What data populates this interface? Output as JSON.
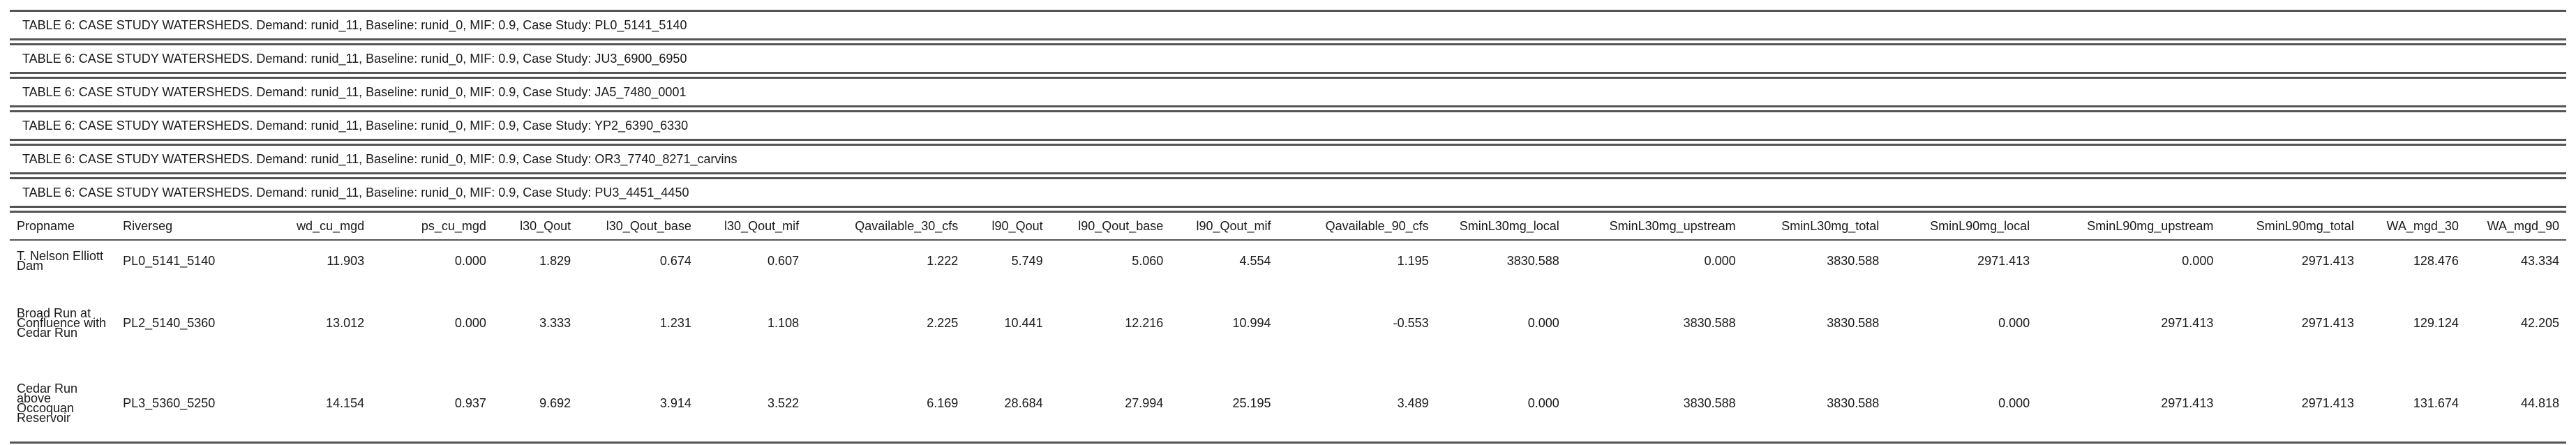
{
  "captions": [
    "TABLE 6: CASE STUDY WATERSHEDS. Demand: runid_11, Baseline: runid_0, MIF: 0.9, Case Study: PL0_5141_5140",
    "TABLE 6: CASE STUDY WATERSHEDS. Demand: runid_11, Baseline: runid_0, MIF: 0.9, Case Study: JU3_6900_6950",
    "TABLE 6: CASE STUDY WATERSHEDS. Demand: runid_11, Baseline: runid_0, MIF: 0.9, Case Study: JA5_7480_0001",
    "TABLE 6: CASE STUDY WATERSHEDS. Demand: runid_11, Baseline: runid_0, MIF: 0.9, Case Study: YP2_6390_6330",
    "TABLE 6: CASE STUDY WATERSHEDS. Demand: runid_11, Baseline: runid_0, MIF: 0.9, Case Study: OR3_7740_8271_carvins",
    "TABLE 6: CASE STUDY WATERSHEDS. Demand: runid_11, Baseline: runid_0, MIF: 0.9, Case Study: PU3_4451_4450"
  ],
  "columns": [
    "Propname",
    "Riverseg",
    "wd_cu_mgd",
    "ps_cu_mgd",
    "l30_Qout",
    "l30_Qout_base",
    "l30_Qout_mif",
    "Qavailable_30_cfs",
    "l90_Qout",
    "l90_Qout_base",
    "l90_Qout_mif",
    "Qavailable_90_cfs",
    "SminL30mg_local",
    "SminL30mg_upstream",
    "SminL30mg_total",
    "SminL90mg_local",
    "SminL90mg_upstream",
    "SminL90mg_total",
    "WA_mgd_30",
    "WA_mgd_90"
  ],
  "rows": [
    [
      "T. Nelson Elliott Dam",
      "PL0_5141_5140",
      "11.903",
      "0.000",
      "1.829",
      "0.674",
      "0.607",
      "1.222",
      "5.749",
      "5.060",
      "4.554",
      "1.195",
      "3830.588",
      "0.000",
      "3830.588",
      "2971.413",
      "0.000",
      "2971.413",
      "128.476",
      "43.334"
    ],
    [
      "Broad Run at Confluence with Cedar Run",
      "PL2_5140_5360",
      "13.012",
      "0.000",
      "3.333",
      "1.231",
      "1.108",
      "2.225",
      "10.441",
      "12.216",
      "10.994",
      "-0.553",
      "0.000",
      "3830.588",
      "3830.588",
      "0.000",
      "2971.413",
      "2971.413",
      "129.124",
      "42.205"
    ],
    [
      "Cedar Run above Occoquan Reservoir",
      "PL3_5360_5250",
      "14.154",
      "0.937",
      "9.692",
      "3.914",
      "3.522",
      "6.169",
      "28.684",
      "27.994",
      "25.195",
      "3.489",
      "0.000",
      "3830.588",
      "3830.588",
      "0.000",
      "2971.413",
      "2971.413",
      "131.674",
      "44.818"
    ]
  ]
}
